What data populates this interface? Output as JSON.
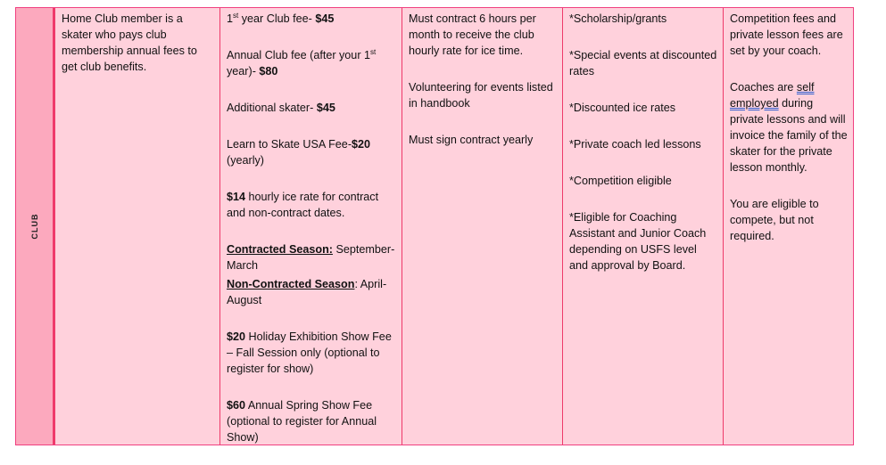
{
  "row_label": "CLUB",
  "columns": [
    {
      "name": "description",
      "paragraphs": [
        [
          {
            "t": "Home Club member is a skater who pays club membership annual fees to get club benefits."
          }
        ]
      ]
    },
    {
      "name": "fees",
      "paragraphs": [
        [
          {
            "t": "1"
          },
          {
            "t": "st",
            "sup": true
          },
          {
            "t": " year Club fee- "
          },
          {
            "t": "$45",
            "b": true
          }
        ],
        [
          {
            "t": "Annual Club fee (after your 1"
          },
          {
            "t": "st",
            "sup": true
          },
          {
            "t": " year)- "
          },
          {
            "t": "$80",
            "b": true
          }
        ],
        [
          {
            "t": "Additional skater- "
          },
          {
            "t": "$45",
            "b": true
          }
        ],
        [
          {
            "t": "Learn to Skate USA Fee-"
          },
          {
            "t": "$20",
            "b": true
          },
          {
            "t": " (yearly)"
          }
        ],
        [
          {
            "t": "$14",
            "b": true
          },
          {
            "t": " hourly ice rate for contract and non-contract dates."
          }
        ],
        [
          {
            "t": "Contracted Season:",
            "b": true,
            "u": true
          },
          {
            "t": " September- March"
          }
        ],
        [
          {
            "t": "Non-Contracted Season",
            "b": true,
            "u": true
          },
          {
            "t": ": April-August",
            "b2": true
          }
        ],
        [
          {
            "t": "$20",
            "b": true
          },
          {
            "t": " Holiday Exhibition Show Fee – Fall Session only (optional to register for show)"
          }
        ],
        [
          {
            "t": "$60",
            "b": true
          },
          {
            "t": " Annual Spring Show Fee (optional to register for Annual Show)"
          }
        ]
      ]
    },
    {
      "name": "requirements",
      "paragraphs": [
        [
          {
            "t": "Must contract 6 hours per month to receive the club hourly rate for ice time."
          }
        ],
        [
          {
            "t": "Volunteering for events listed in handbook"
          }
        ],
        [
          {
            "t": "Must sign contract yearly"
          }
        ]
      ]
    },
    {
      "name": "benefits",
      "paragraphs": [
        [
          {
            "t": "*Scholarship/grants"
          }
        ],
        [
          {
            "t": "*Special events at discounted rates"
          }
        ],
        [
          {
            "t": "*Discounted ice rates"
          }
        ],
        [
          {
            "t": "*Private coach led lessons"
          }
        ],
        [
          {
            "t": "*Competition eligible"
          }
        ],
        [
          {
            "t": "*Eligible for Coaching Assistant and Junior Coach depending on USFS level and approval by Board."
          }
        ]
      ]
    },
    {
      "name": "notes",
      "paragraphs": [
        [
          {
            "t": "Competition fees and private lesson fees are set by your coach."
          }
        ],
        [
          {
            "t": "Coaches are "
          },
          {
            "t": "self employed",
            "g": true
          },
          {
            "t": " during private lessons and will invoice the family of the skater for the private lesson monthly."
          }
        ],
        [
          {
            "t": "You are eligible to compete, but not required."
          }
        ]
      ]
    }
  ],
  "colors": {
    "cell_bg": "#ffd1dc",
    "label_bg": "#fca9be",
    "border": "#ee3a6a"
  }
}
